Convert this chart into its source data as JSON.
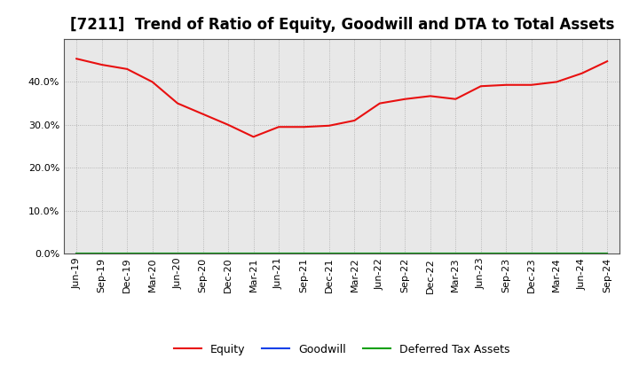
{
  "title": "[7211]  Trend of Ratio of Equity, Goodwill and DTA to Total Assets",
  "x_labels": [
    "Jun-19",
    "Sep-19",
    "Dec-19",
    "Mar-20",
    "Jun-20",
    "Sep-20",
    "Dec-20",
    "Mar-21",
    "Jun-21",
    "Sep-21",
    "Dec-21",
    "Mar-22",
    "Jun-22",
    "Sep-22",
    "Dec-22",
    "Mar-23",
    "Jun-23",
    "Sep-23",
    "Dec-23",
    "Mar-24",
    "Jun-24",
    "Sep-24"
  ],
  "equity": [
    0.454,
    0.44,
    0.43,
    0.4,
    0.35,
    0.325,
    0.3,
    0.272,
    0.295,
    0.295,
    0.298,
    0.31,
    0.35,
    0.36,
    0.367,
    0.36,
    0.39,
    0.393,
    0.393,
    0.4,
    0.42,
    0.448
  ],
  "goodwill": [
    0.0,
    0.0,
    0.0,
    0.0,
    0.0,
    0.0,
    0.0,
    0.0,
    0.0,
    0.0,
    0.0,
    0.0,
    0.0,
    0.0,
    0.0,
    0.0,
    0.0,
    0.0,
    0.0,
    0.0,
    0.0,
    0.0
  ],
  "dta": [
    0.0,
    0.0,
    0.0,
    0.0,
    0.0,
    0.0,
    0.0,
    0.0,
    0.0,
    0.0,
    0.0,
    0.0,
    0.0,
    0.0,
    0.0,
    0.0,
    0.0,
    0.0,
    0.0,
    0.0,
    0.0,
    0.0
  ],
  "equity_color": "#e81010",
  "goodwill_color": "#1040e8",
  "dta_color": "#10a010",
  "ylim": [
    0.0,
    0.5
  ],
  "yticks": [
    0.0,
    0.1,
    0.2,
    0.3,
    0.4
  ],
  "background_color": "#ffffff",
  "plot_bg_color": "#e8e8e8",
  "grid_color": "#aaaaaa",
  "title_fontsize": 12,
  "tick_fontsize": 8,
  "legend_labels": [
    "Equity",
    "Goodwill",
    "Deferred Tax Assets"
  ]
}
